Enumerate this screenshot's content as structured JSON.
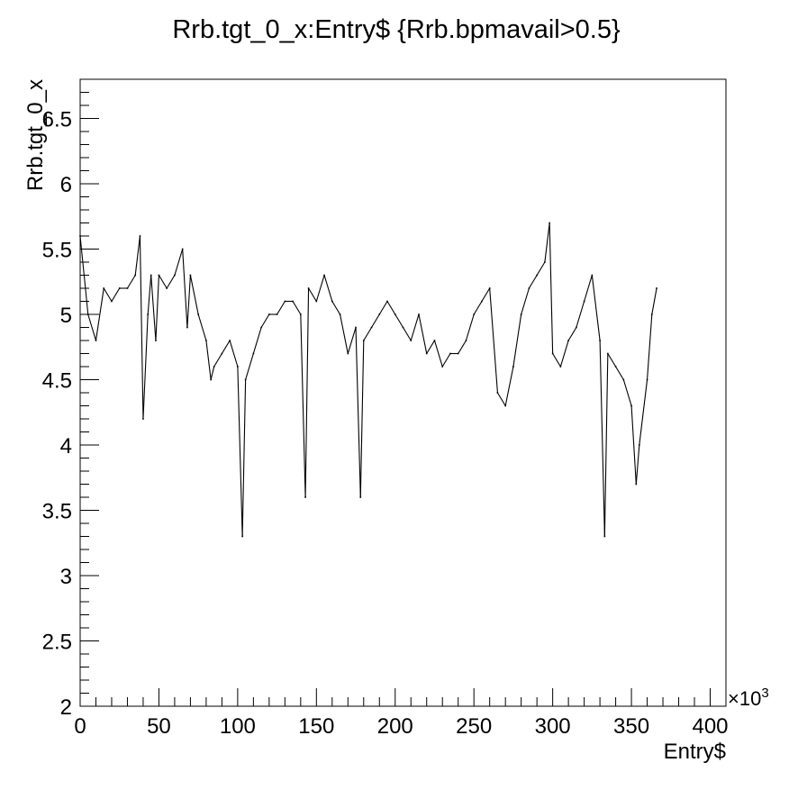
{
  "chart_data": {
    "type": "scatter",
    "title": "Rrb.tgt_0_x:Entry$ {Rrb.bpmavail>0.5}",
    "xlabel": "Entry$",
    "ylabel": "Rrb.tgt_0_x",
    "x_multiplier_label": "×10",
    "x_multiplier_exponent": "3",
    "xlim": [
      0,
      410
    ],
    "ylim": [
      2,
      6.8
    ],
    "x_ticks": [
      0,
      50,
      100,
      150,
      200,
      250,
      300,
      350,
      400
    ],
    "x_tick_labels": [
      "0",
      "50",
      "100",
      "150",
      "200",
      "250",
      "300",
      "350",
      "400"
    ],
    "y_ticks": [
      2,
      2.5,
      3,
      3.5,
      4,
      4.5,
      5,
      5.5,
      6,
      6.5
    ],
    "y_tick_labels": [
      "2",
      "2.5",
      "3",
      "3.5",
      "4",
      "4.5",
      "5",
      "5.5",
      "6",
      "6.5"
    ],
    "grid": false,
    "series": [
      {
        "marker_color": "#000000",
        "x": [
          0,
          5,
          10,
          15,
          20,
          25,
          30,
          35,
          38,
          40,
          43,
          45,
          48,
          50,
          55,
          60,
          65,
          68,
          70,
          75,
          80,
          83,
          85,
          90,
          95,
          100,
          103,
          105,
          110,
          115,
          120,
          125,
          130,
          135,
          140,
          143,
          145,
          150,
          155,
          160,
          165,
          170,
          175,
          178,
          180,
          185,
          190,
          195,
          200,
          205,
          210,
          215,
          220,
          225,
          230,
          235,
          240,
          245,
          250,
          255,
          260,
          265,
          270,
          275,
          280,
          285,
          290,
          295,
          298,
          300,
          305,
          310,
          315,
          320,
          325,
          330,
          333,
          335,
          340,
          345,
          350,
          353,
          355,
          360,
          363,
          366
        ],
        "y": [
          5.6,
          5.0,
          4.8,
          5.2,
          5.1,
          5.2,
          5.2,
          5.3,
          5.6,
          4.2,
          5.0,
          5.3,
          4.8,
          5.3,
          5.2,
          5.3,
          5.5,
          4.9,
          5.3,
          5.0,
          4.8,
          4.5,
          4.6,
          4.7,
          4.8,
          4.6,
          3.3,
          4.5,
          4.7,
          4.9,
          5.0,
          5.0,
          5.1,
          5.1,
          5.0,
          3.6,
          5.2,
          5.1,
          5.3,
          5.1,
          5.0,
          4.7,
          4.9,
          3.6,
          4.8,
          4.9,
          5.0,
          5.1,
          5.0,
          4.9,
          4.8,
          5.0,
          4.7,
          4.8,
          4.6,
          4.7,
          4.7,
          4.8,
          5.0,
          5.1,
          5.2,
          4.4,
          4.3,
          4.6,
          5.0,
          5.2,
          5.3,
          5.4,
          5.7,
          4.7,
          4.6,
          4.8,
          4.9,
          5.1,
          5.3,
          4.8,
          3.3,
          4.7,
          4.6,
          4.5,
          4.3,
          3.7,
          4.0,
          4.5,
          5.0,
          5.2
        ]
      }
    ]
  }
}
